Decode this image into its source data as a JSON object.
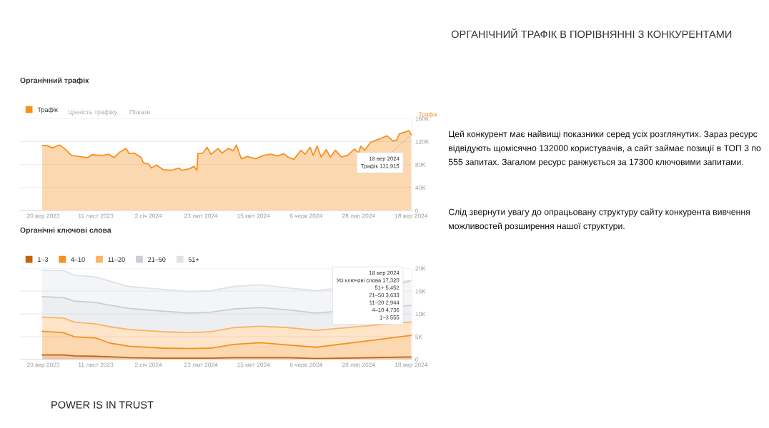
{
  "chart_data": [
    {
      "type": "area",
      "title": "Органічний трафік",
      "ylabel": "Трафік",
      "legend": "top left",
      "grid": "y",
      "xlim": [
        "2023-08-28",
        "2024-09-19"
      ],
      "ylim": [
        0,
        160000
      ],
      "xticks": [
        {
          "value": "2023-09-20",
          "label": "20 вер 2023"
        },
        {
          "value": "2023-11-11",
          "label": "11 лист 2023"
        },
        {
          "value": "2024-01-02",
          "label": "2 січ 2024"
        },
        {
          "value": "2024-02-23",
          "label": "23 лют 2024"
        },
        {
          "value": "2024-04-15",
          "label": "15 квіт 2024"
        },
        {
          "value": "2024-06-06",
          "label": "6 черв 2024"
        },
        {
          "value": "2024-07-28",
          "label": "28 лип 2024"
        },
        {
          "value": "2024-09-18",
          "label": "18 вер 2024"
        }
      ],
      "yticks": [
        0,
        {
          "value": 40000,
          "label": "40K"
        },
        {
          "value": 80000,
          "label": "80K"
        },
        {
          "value": 120000,
          "label": "120K"
        },
        {
          "value": 160000,
          "label": "160K"
        }
      ],
      "x": [
        "2023-09-19",
        "2023-09-24",
        "2023-09-29",
        "2023-10-06",
        "2023-10-11",
        "2023-10-18",
        "2023-11-03",
        "2023-11-07",
        "2023-11-18",
        "2023-11-24",
        "2023-11-29",
        "2023-12-05",
        "2023-12-11",
        "2023-12-14",
        "2023-12-19",
        "2023-12-26",
        "2023-12-28",
        "2024-01-02",
        "2024-01-05",
        "2024-01-10",
        "2024-01-17",
        "2024-01-25",
        "2024-02-01",
        "2024-02-04",
        "2024-02-12",
        "2024-02-16",
        "2024-02-19",
        "2024-02-20",
        "2024-02-25",
        "2024-02-29",
        "2024-03-04",
        "2024-03-11",
        "2024-03-15",
        "2024-03-21",
        "2024-03-26",
        "2024-03-29",
        "2024-04-03",
        "2024-04-09",
        "2024-04-17",
        "2024-04-25",
        "2024-05-02",
        "2024-05-09",
        "2024-05-15",
        "2024-05-19",
        "2024-05-25",
        "2024-06-01",
        "2024-06-05",
        "2024-06-10",
        "2024-06-13",
        "2024-06-17",
        "2024-06-21",
        "2024-06-26",
        "2024-06-30",
        "2024-07-05",
        "2024-07-11",
        "2024-07-17",
        "2024-07-24",
        "2024-07-28",
        "2024-07-30",
        "2024-08-03",
        "2024-08-09",
        "2024-08-17",
        "2024-08-25",
        "2024-08-31",
        "2024-09-04",
        "2024-09-06",
        "2024-09-16",
        "2024-09-18"
      ],
      "series": [
        {
          "name": "Трафік",
          "color": "#f7901e",
          "values": [
            113000,
            113000,
            109000,
            114000,
            108000,
            96000,
            92000,
            97000,
            96000,
            98000,
            92000,
            102000,
            108000,
            99000,
            100000,
            92000,
            83000,
            81000,
            74000,
            79000,
            71000,
            70000,
            74000,
            70000,
            73000,
            77000,
            70000,
            99000,
            100000,
            110000,
            98000,
            108000,
            100000,
            108000,
            104000,
            114000,
            90000,
            94000,
            90000,
            96000,
            98000,
            95000,
            99000,
            93000,
            89000,
            105000,
            98000,
            110000,
            96000,
            112000,
            93000,
            106000,
            93000,
            105000,
            93000,
            96000,
            107000,
            100000,
            112000,
            105000,
            119000,
            124000,
            130000,
            121000,
            123000,
            133000,
            139000,
            131915
          ]
        }
      ],
      "annotations": [
        "Цінність трафіку",
        "Покази",
        {
          "text": "18 вер 2024\nТрафік 131,915",
          "x": "2024-09-18",
          "y": 131915
        }
      ]
    },
    {
      "type": "area",
      "stacked": true,
      "title": "Органічні ключові слова",
      "legend": "top left",
      "grid": "y",
      "xlim": [
        "2023-08-28",
        "2024-09-19"
      ],
      "ylim": [
        0,
        20000
      ],
      "xticks": [
        {
          "value": "2023-09-20",
          "label": "20 вер 2023"
        },
        {
          "value": "2023-11-11",
          "label": "11 лист 2023"
        },
        {
          "value": "2024-01-02",
          "label": "2 січ 2024"
        },
        {
          "value": "2024-02-23",
          "label": "23 лют 2024"
        },
        {
          "value": "2024-04-15",
          "label": "15 квіт 2024"
        },
        {
          "value": "2024-06-06",
          "label": "6 черв 2024"
        },
        {
          "value": "2024-07-28",
          "label": "28 лип 2024"
        },
        {
          "value": "2024-09-18",
          "label": "18 вер 2024"
        }
      ],
      "yticks": [
        0,
        {
          "value": 5000,
          "label": "5K"
        },
        {
          "value": 10000,
          "label": "10K"
        },
        {
          "value": 15000,
          "label": "15K"
        },
        {
          "value": 20000,
          "label": "20K"
        }
      ],
      "x": [
        "2023-09-19",
        "2023-10-10",
        "2023-10-21",
        "2023-11-11",
        "2023-11-25",
        "2023-12-14",
        "2024-01-16",
        "2024-02-12",
        "2024-03-04",
        "2024-03-26",
        "2024-04-22",
        "2024-05-19",
        "2024-06-16",
        "2024-09-18"
      ],
      "series": [
        {
          "name": "1–3",
          "color": "#c8620a",
          "values": [
            1000,
            1000,
            800,
            700,
            600,
            400,
            300,
            300,
            300,
            400,
            400,
            400,
            200,
            555
          ]
        },
        {
          "name": "4–10",
          "color": "#f7901e",
          "values": [
            5200,
            4900,
            4200,
            4000,
            3000,
            2500,
            2200,
            2100,
            2200,
            2900,
            3300,
            2800,
            2500,
            4736
          ]
        },
        {
          "name": "11–20",
          "color": "#fbb463",
          "values": [
            3100,
            3200,
            3200,
            3100,
            3600,
            3700,
            3600,
            3500,
            3600,
            3700,
            3600,
            3800,
            3700,
            2944
          ]
        },
        {
          "name": "21–50",
          "color": "#c9ced6",
          "values": [
            4500,
            4500,
            4600,
            4700,
            4700,
            4600,
            4500,
            4300,
            4300,
            4100,
            4100,
            3900,
            3800,
            3633
          ]
        },
        {
          "name": "51+",
          "color": "#dfe2e8",
          "values": [
            5800,
            5900,
            5700,
            5600,
            5300,
            4800,
            4800,
            4700,
            4700,
            4900,
            5000,
            4800,
            4900,
            5452
          ]
        }
      ],
      "annotations": [
        {
          "text": "18 вер 2024\nУсі ключові слова 17,320\n51+ 5,452\n21–50 3,633\n11–20 2,944\n4–10 4,736\n1–3 555",
          "x": "2024-09-18",
          "y": 17320
        }
      ]
    },
    {
      "type": "other",
      "title": "ОРГАНІЧНИЙ ТРАФІК В ПОРІВНЯННІ З КОНКУРЕНТАМИ",
      "annotations": [
        "Цей конкурент має найвищі показники серед усіх розглянутих. Зараз ресурс відвідують щомісячно 132000 користувачів, а сайт займає позиції в ТОП 3 по 555 запитах. Загалом ресурс ранжується за 17300 ключовими запитами.",
        "Слід звернути увагу до опрацьовану структуру сайту конкурента вивчення можливостей розширення нашої структури.",
        "POWER IS IN TRUST"
      ]
    }
  ]
}
